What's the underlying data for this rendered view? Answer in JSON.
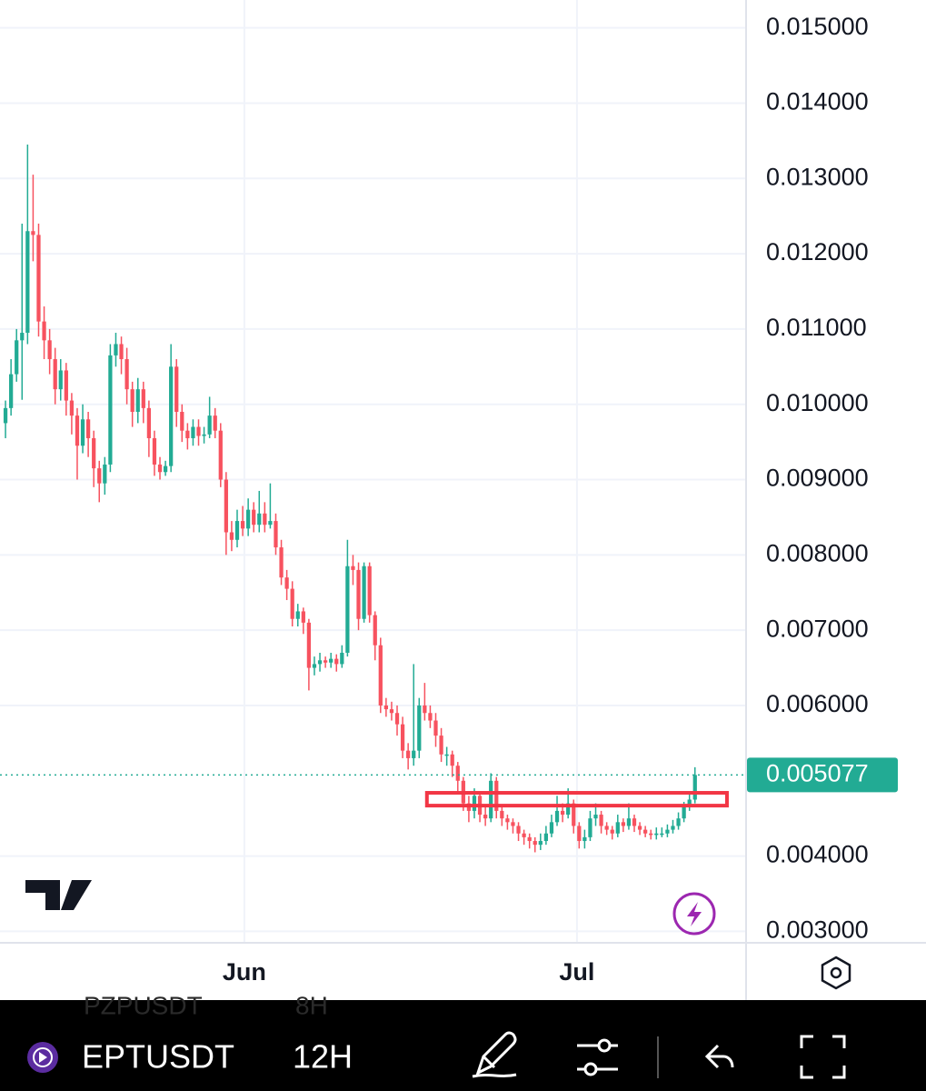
{
  "chart_data": {
    "type": "candlestick",
    "up_color": "#22ab94",
    "down_color": "#f7525f",
    "grid": true,
    "ylim": [
      0.00286,
      0.01537
    ],
    "xlim": [
      -1,
      134.1
    ],
    "yticks": [
      {
        "value": 0.015,
        "label": "0.015000"
      },
      {
        "value": 0.014,
        "label": "0.014000"
      },
      {
        "value": 0.013,
        "label": "0.013000"
      },
      {
        "value": 0.012,
        "label": "0.012000"
      },
      {
        "value": 0.011,
        "label": "0.011000"
      },
      {
        "value": 0.01,
        "label": "0.010000"
      },
      {
        "value": 0.009,
        "label": "0.009000"
      },
      {
        "value": 0.008,
        "label": "0.008000"
      },
      {
        "value": 0.007,
        "label": "0.007000"
      },
      {
        "value": 0.006,
        "label": "0.006000"
      },
      {
        "value": 0.004,
        "label": "0.004000"
      },
      {
        "value": 0.003,
        "label": "0.003000"
      }
    ],
    "xticks": [
      {
        "value": 43.3,
        "label": "Jun"
      },
      {
        "value": 103.6,
        "label": "Jul"
      }
    ],
    "last_price": 0.005077,
    "last_price_color": "#22ab94",
    "highlight_zone": {
      "x": [
        76.4,
        130.8
      ],
      "y": [
        0.00467,
        0.00484
      ],
      "color": "#f23645"
    },
    "open": [
      0.00975,
      0.00995,
      0.0104,
      0.01085,
      0.01095,
      0.0123,
      0.01225,
      0.0111,
      0.01085,
      0.0106,
      0.0102,
      0.01045,
      0.01005,
      0.00985,
      0.00945,
      0.0098,
      0.00955,
      0.00915,
      0.00895,
      0.0092,
      0.01065,
      0.0108,
      0.0106,
      0.0102,
      0.0099,
      0.0102,
      0.00995,
      0.00955,
      0.0092,
      0.0091,
      0.00918,
      0.0105,
      0.0099,
      0.00965,
      0.00955,
      0.0097,
      0.00958,
      0.0096,
      0.00985,
      0.00965,
      0.009,
      0.0083,
      0.0082,
      0.00845,
      0.00835,
      0.0086,
      0.0084,
      0.00855,
      0.0084,
      0.00845,
      0.0081,
      0.0077,
      0.00755,
      0.00715,
      0.00725,
      0.0071,
      0.0065,
      0.00655,
      0.0066,
      0.00657,
      0.00662,
      0.00655,
      0.0067,
      0.00785,
      0.0078,
      0.00715,
      0.00785,
      0.0072,
      0.0068,
      0.006,
      0.00595,
      0.0059,
      0.00575,
      0.0054,
      0.0053,
      0.0054,
      0.006,
      0.0059,
      0.0058,
      0.0056,
      0.00535,
      0.00535,
      0.0052,
      0.005,
      0.0047,
      0.0046,
      0.0048,
      0.00455,
      0.0045,
      0.005,
      0.0046,
      0.0045,
      0.00445,
      0.0044,
      0.0043,
      0.00425,
      0.0042,
      0.00415,
      0.0042,
      0.0043,
      0.00445,
      0.0046,
      0.00455,
      0.0047,
      0.0044,
      0.0042,
      0.00425,
      0.0045,
      0.00455,
      0.0044,
      0.00435,
      0.0043,
      0.00445,
      0.0044,
      0.0045,
      0.0044,
      0.00435,
      0.0043,
      0.00428,
      0.0043,
      0.0043,
      0.00435,
      0.0044,
      0.0045,
      0.00465,
      0.00475
    ],
    "high": [
      0.01005,
      0.0106,
      0.011,
      0.0124,
      0.01345,
      0.01305,
      0.0124,
      0.0113,
      0.011,
      0.01075,
      0.0106,
      0.01055,
      0.01015,
      0.00995,
      0.01,
      0.0099,
      0.00965,
      0.00925,
      0.0093,
      0.0108,
      0.01095,
      0.0109,
      0.01075,
      0.0103,
      0.01035,
      0.0103,
      0.01005,
      0.00965,
      0.0093,
      0.00925,
      0.0108,
      0.0106,
      0.01,
      0.00975,
      0.0098,
      0.0098,
      0.0097,
      0.0101,
      0.00995,
      0.00975,
      0.0091,
      0.00845,
      0.0086,
      0.00865,
      0.00875,
      0.0087,
      0.00885,
      0.0087,
      0.00895,
      0.00855,
      0.0082,
      0.0078,
      0.00765,
      0.00735,
      0.0073,
      0.00715,
      0.00665,
      0.0067,
      0.00665,
      0.0067,
      0.00668,
      0.0068,
      0.0082,
      0.008,
      0.0079,
      0.0079,
      0.0079,
      0.00725,
      0.0069,
      0.0061,
      0.00605,
      0.006,
      0.00585,
      0.0055,
      0.00655,
      0.0061,
      0.0063,
      0.006,
      0.0059,
      0.0057,
      0.00545,
      0.0054,
      0.00525,
      0.00505,
      0.0048,
      0.0049,
      0.00485,
      0.00465,
      0.0051,
      0.00505,
      0.00465,
      0.00455,
      0.0045,
      0.00445,
      0.00435,
      0.0043,
      0.00425,
      0.0043,
      0.0044,
      0.00455,
      0.0048,
      0.0047,
      0.0049,
      0.00475,
      0.00445,
      0.00435,
      0.0046,
      0.0047,
      0.0046,
      0.00445,
      0.0044,
      0.00455,
      0.0045,
      0.0047,
      0.00455,
      0.00445,
      0.0044,
      0.00435,
      0.00438,
      0.00438,
      0.00442,
      0.00448,
      0.00458,
      0.00472,
      0.00485,
      0.00518
    ],
    "low": [
      0.00955,
      0.00985,
      0.0103,
      0.01006,
      0.0108,
      0.0119,
      0.0109,
      0.0106,
      0.0104,
      0.01,
      0.01005,
      0.00985,
      0.0096,
      0.009,
      0.00935,
      0.0093,
      0.0089,
      0.0087,
      0.0088,
      0.0091,
      0.0105,
      0.0104,
      0.01,
      0.0097,
      0.00975,
      0.00975,
      0.0093,
      0.00905,
      0.009,
      0.00905,
      0.0091,
      0.0097,
      0.0095,
      0.0094,
      0.00945,
      0.00945,
      0.00948,
      0.00955,
      0.00955,
      0.0089,
      0.008,
      0.00805,
      0.0081,
      0.00825,
      0.00825,
      0.0083,
      0.0083,
      0.0083,
      0.00835,
      0.008,
      0.0076,
      0.0074,
      0.00705,
      0.00705,
      0.00695,
      0.0062,
      0.0064,
      0.00645,
      0.0065,
      0.0065,
      0.00645,
      0.0065,
      0.00665,
      0.0076,
      0.007,
      0.0071,
      0.0071,
      0.0066,
      0.0059,
      0.00585,
      0.0058,
      0.0056,
      0.0053,
      0.00515,
      0.0052,
      0.0053,
      0.0058,
      0.0057,
      0.00545,
      0.00525,
      0.0052,
      0.00505,
      0.00485,
      0.0046,
      0.00445,
      0.0045,
      0.00445,
      0.0044,
      0.00445,
      0.0045,
      0.0044,
      0.00435,
      0.0043,
      0.0042,
      0.00415,
      0.0041,
      0.00405,
      0.00408,
      0.00415,
      0.00425,
      0.0044,
      0.00445,
      0.0045,
      0.0043,
      0.0041,
      0.0041,
      0.0042,
      0.0044,
      0.0043,
      0.00428,
      0.00422,
      0.00425,
      0.00432,
      0.00435,
      0.00432,
      0.00428,
      0.00425,
      0.00422,
      0.00422,
      0.00425,
      0.00425,
      0.0043,
      0.00435,
      0.00445,
      0.0046,
      0.0047
    ],
    "close": [
      0.00995,
      0.0104,
      0.01085,
      0.01095,
      0.0123,
      0.01225,
      0.0111,
      0.01085,
      0.0106,
      0.0102,
      0.01045,
      0.01005,
      0.00985,
      0.00945,
      0.0098,
      0.00955,
      0.00915,
      0.00895,
      0.0092,
      0.01065,
      0.0108,
      0.0106,
      0.0102,
      0.0099,
      0.0102,
      0.00995,
      0.00955,
      0.0092,
      0.0091,
      0.00918,
      0.0105,
      0.0099,
      0.00965,
      0.00955,
      0.0097,
      0.00958,
      0.0096,
      0.00985,
      0.00965,
      0.009,
      0.0083,
      0.0082,
      0.00845,
      0.00835,
      0.0086,
      0.0084,
      0.00855,
      0.0084,
      0.00845,
      0.0081,
      0.0077,
      0.00755,
      0.00715,
      0.00725,
      0.0071,
      0.0065,
      0.00655,
      0.0066,
      0.00657,
      0.00662,
      0.00655,
      0.0067,
      0.00785,
      0.0078,
      0.00715,
      0.00785,
      0.0072,
      0.0068,
      0.006,
      0.00595,
      0.0059,
      0.00575,
      0.0054,
      0.0053,
      0.0054,
      0.006,
      0.0059,
      0.0058,
      0.0056,
      0.00535,
      0.00535,
      0.0052,
      0.005,
      0.0047,
      0.0046,
      0.0048,
      0.00455,
      0.0045,
      0.005,
      0.0046,
      0.0045,
      0.00445,
      0.0044,
      0.0043,
      0.00425,
      0.0042,
      0.00415,
      0.0042,
      0.0043,
      0.00445,
      0.0046,
      0.00455,
      0.0047,
      0.0044,
      0.0042,
      0.00425,
      0.0045,
      0.00455,
      0.0044,
      0.00435,
      0.0043,
      0.00445,
      0.0044,
      0.0045,
      0.0044,
      0.00435,
      0.0043,
      0.00428,
      0.0043,
      0.0043,
      0.00435,
      0.0044,
      0.0045,
      0.00465,
      0.00475,
      0.005077
    ]
  },
  "toolbar": {
    "symbol": "EPTUSDT",
    "interval": "12H",
    "ghost_symbol": "PZPUSDT",
    "ghost_interval": "8H"
  }
}
